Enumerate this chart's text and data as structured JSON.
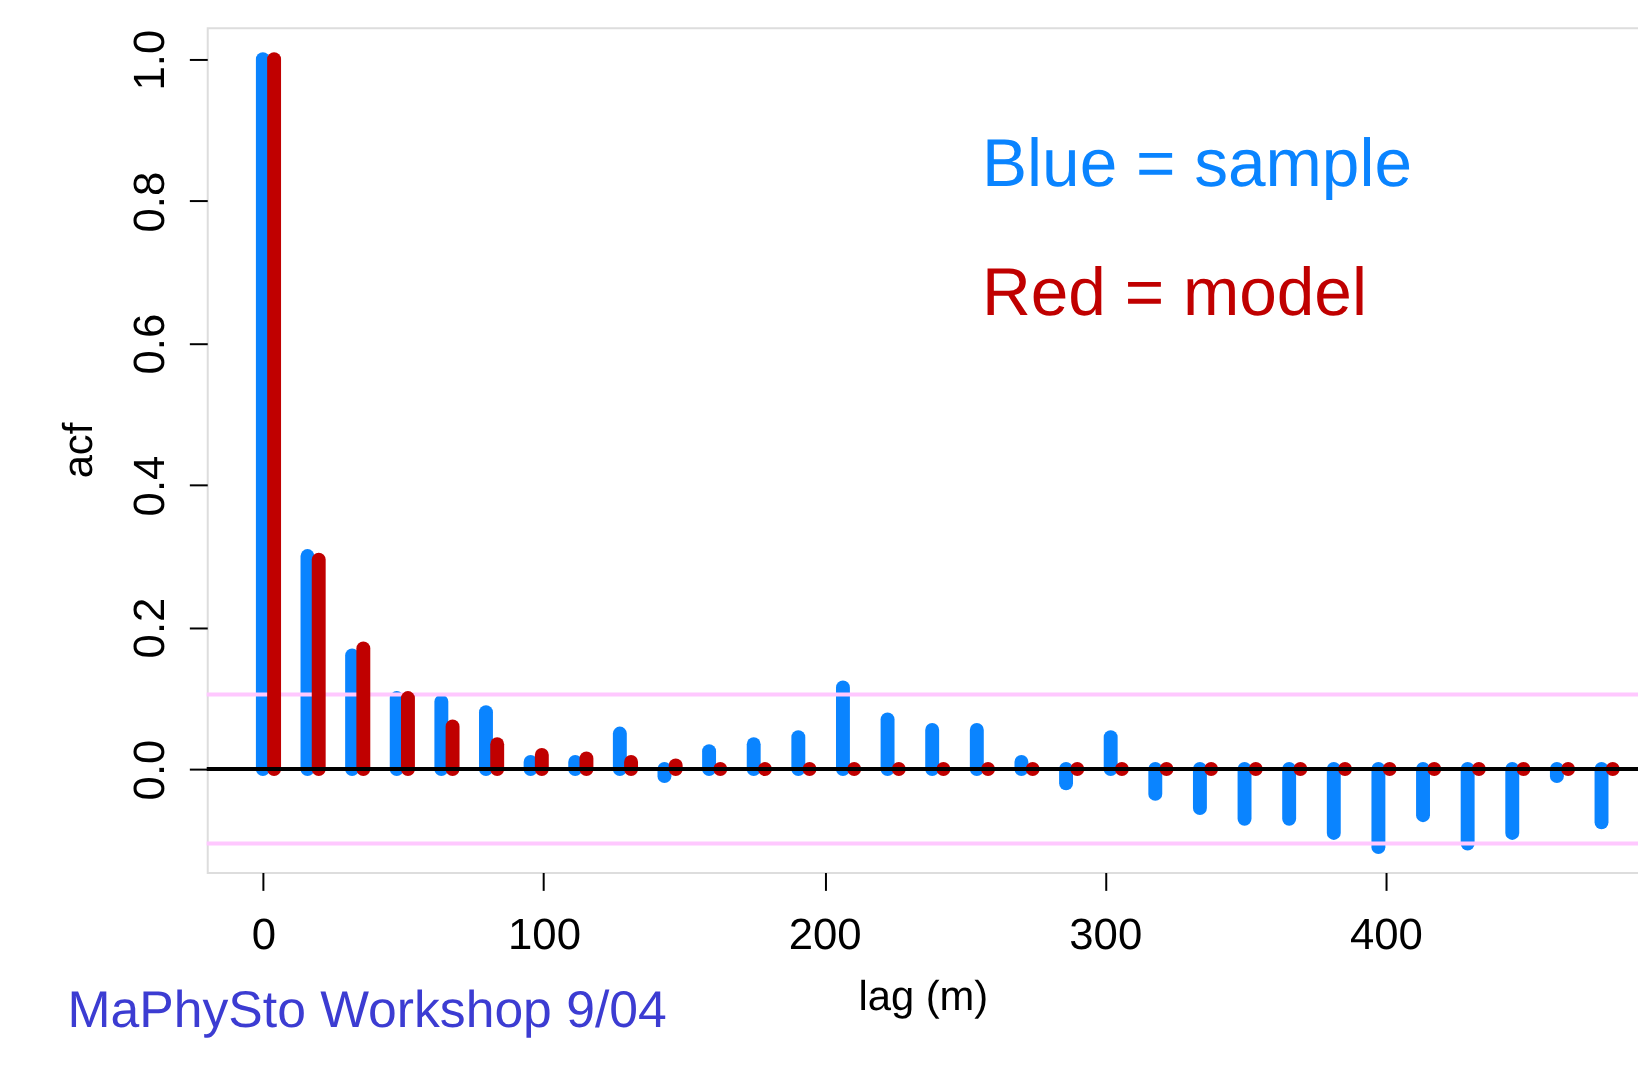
{
  "chart_data": {
    "type": "bar",
    "xlabel": "lag (m)",
    "ylabel": "acf",
    "xlim": [
      -20,
      490
    ],
    "xticks": [
      0,
      100,
      200,
      300,
      400
    ],
    "ylim": [
      -0.145,
      1.045
    ],
    "yticks": [
      {
        "value": 0,
        "label": "0.0"
      },
      {
        "value": 0.2,
        "label": "0.2"
      },
      {
        "value": 0.4,
        "label": "0.4"
      },
      {
        "value": 0.6,
        "label": "0.6"
      },
      {
        "value": 0.8,
        "label": "0.8"
      },
      {
        "value": 1,
        "label": "1.0"
      }
    ],
    "grid": false,
    "legend": "top right",
    "series": [
      {
        "name": "Blue = sample",
        "color": "#0a84ff",
        "x": [
          0,
          15.9,
          31.8,
          47.7,
          63.6,
          79.5,
          95.4,
          111.3,
          127.2,
          143.1,
          159,
          174.9,
          190.8,
          206.7,
          222.6,
          238.5,
          254.4,
          270.3,
          286.2,
          302.1,
          318,
          333.9,
          349.8,
          365.7,
          381.6,
          397.5,
          413.4,
          429.3,
          445.2,
          461.1,
          477
        ],
        "values": [
          1.0,
          0.3,
          0.16,
          0.1,
          0.095,
          0.08,
          0.01,
          0.01,
          0.05,
          -0.01,
          0.025,
          0.035,
          0.045,
          0.115,
          0.07,
          0.055,
          0.055,
          0.01,
          -0.02,
          0.045,
          -0.035,
          -0.055,
          -0.07,
          -0.07,
          -0.09,
          -0.11,
          -0.065,
          -0.105,
          -0.09,
          -0.01,
          -0.075
        ]
      },
      {
        "name": "Red = model",
        "color": "#c00000",
        "x": [
          4,
          19.9,
          35.8,
          51.7,
          67.6,
          83.5,
          99.4,
          115.3,
          131.2,
          147.1,
          163,
          178.9,
          194.8,
          210.7,
          226.6,
          242.5,
          258.4,
          274.3,
          290.2,
          306.1,
          322,
          337.9,
          353.8,
          369.7,
          385.6,
          401.5,
          417.4,
          433.3,
          449.2,
          465.1,
          481
        ],
        "values": [
          1.0,
          0.295,
          0.17,
          0.1,
          0.06,
          0.035,
          0.02,
          0.015,
          0.01,
          0.005,
          0,
          0,
          0,
          0,
          0,
          0,
          0,
          0,
          0,
          0,
          0,
          0,
          0,
          0,
          0,
          0,
          0,
          0,
          0,
          0,
          0
        ]
      }
    ],
    "ref_lines": [
      {
        "axis": "y",
        "value": 0,
        "color": "#000000"
      },
      {
        "axis": "y",
        "value": 0.105,
        "color": "#ffc8ff"
      },
      {
        "axis": "y",
        "value": -0.105,
        "color": "#ffc8ff"
      }
    ],
    "annotations": [
      "MaPhySto Workshop 9/04"
    ]
  }
}
